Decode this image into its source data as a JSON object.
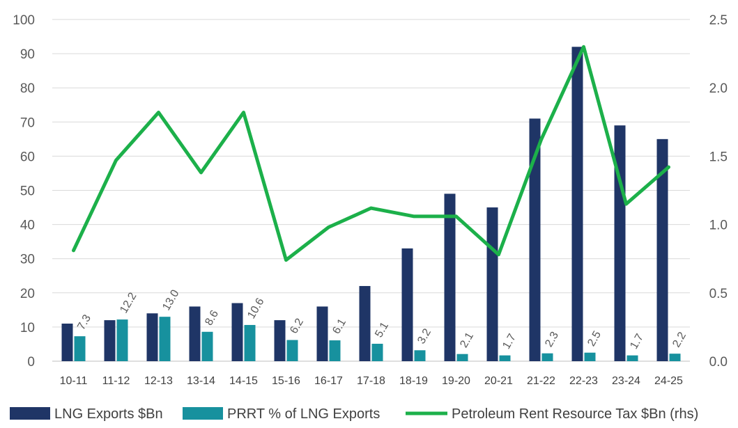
{
  "chart_data": {
    "type": "bar",
    "categories": [
      "10-11",
      "11-12",
      "12-13",
      "13-14",
      "14-15",
      "15-16",
      "16-17",
      "17-18",
      "18-19",
      "19-20",
      "20-21",
      "21-22",
      "22-23",
      "23-24",
      "24-25"
    ],
    "series": [
      {
        "name": "LNG Exports $Bn",
        "type": "bar",
        "axis": "left",
        "color": "#1f3566",
        "values": [
          11,
          12,
          14,
          16,
          17,
          12,
          16,
          22,
          33,
          49,
          45,
          71,
          92,
          69,
          65
        ]
      },
      {
        "name": "PRRT % of LNG Exports",
        "type": "bar",
        "axis": "left",
        "color": "#17919e",
        "values": [
          7.3,
          12.2,
          13.0,
          8.6,
          10.6,
          6.2,
          6.1,
          5.1,
          3.2,
          2.1,
          1.7,
          2.3,
          2.5,
          1.7,
          2.2
        ],
        "labels": [
          "7.3",
          "12.2",
          "13.0",
          "8.6",
          "10.6",
          "6.2",
          "6.1",
          "5.1",
          "3.2",
          "2.1",
          "1.7",
          "2.3",
          "2.5",
          "1.7",
          "2.2"
        ]
      },
      {
        "name": "Petroleum Rent Resource Tax $Bn (rhs)",
        "type": "line",
        "axis": "right",
        "color": "#1cb04a",
        "values": [
          0.81,
          1.47,
          1.82,
          1.38,
          1.82,
          0.74,
          0.98,
          1.12,
          1.06,
          1.06,
          0.78,
          1.62,
          2.3,
          1.15,
          1.42
        ]
      }
    ],
    "y_left": {
      "min": 0,
      "max": 100,
      "ticks": [
        "0",
        "10",
        "20",
        "30",
        "40",
        "50",
        "60",
        "70",
        "80",
        "90",
        "100"
      ]
    },
    "y_right": {
      "min": 0,
      "max": 2.5,
      "ticks": [
        "0.0",
        "0.5",
        "1.0",
        "1.5",
        "2.0",
        "2.5"
      ]
    },
    "grid": true,
    "legend": "bottom"
  }
}
